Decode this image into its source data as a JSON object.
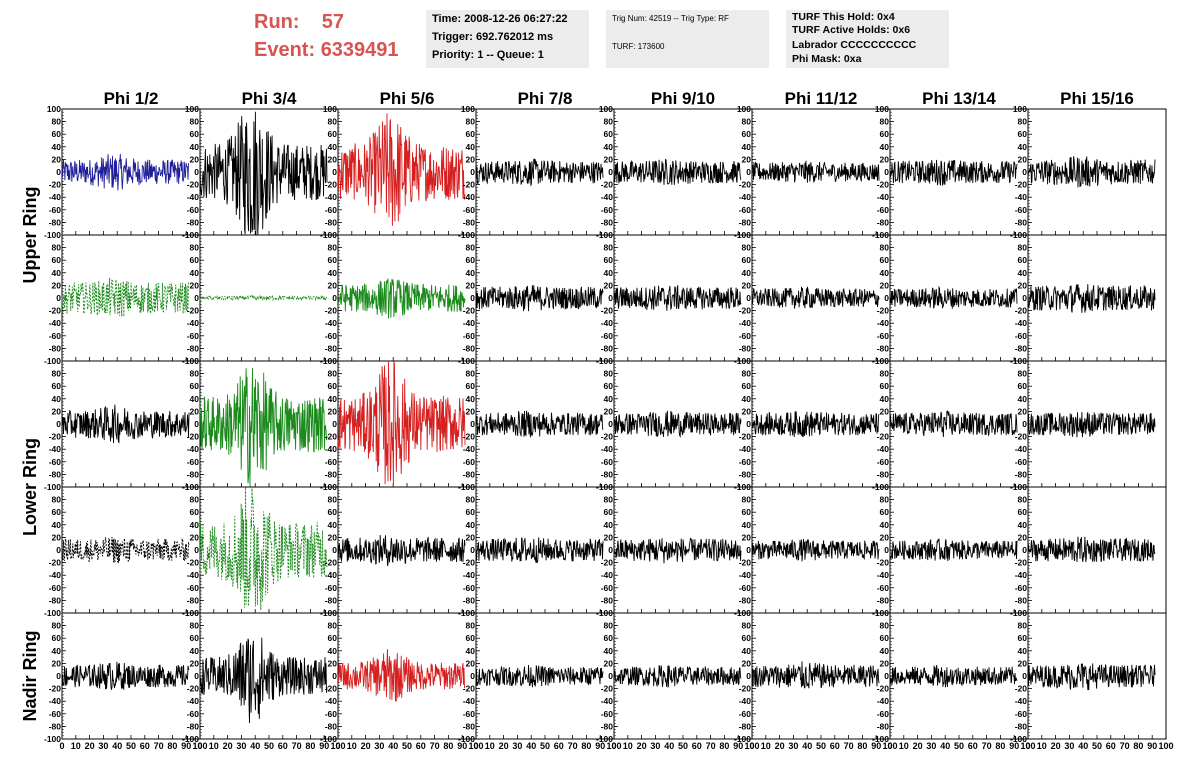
{
  "header": {
    "run_label": "Run:",
    "run_value": "57",
    "event_label": "Event:",
    "event_value": "6339491"
  },
  "info_boxes": {
    "time": [
      "Time: 2008-12-26 06:27:22",
      "Trigger: 692.762012 ms",
      "Priority: 1 -- Queue: 1"
    ],
    "trig": [
      "Trig Num: 42519 -- Trig Type: RF",
      "TURF: 173600"
    ],
    "turf": [
      "TURF This Hold: 0x4",
      "TURF Active Holds: 0x6",
      "Labrador CCCCCCCCCC",
      "Phi Mask: 0xa"
    ]
  },
  "colors": {
    "black": "#000000",
    "blue": "#1f1f9a",
    "red": "#d62020",
    "green": "#1a8a1a",
    "header_red": "#d9534f",
    "info_bg": "#ececec"
  },
  "chart_data": {
    "type": "line",
    "title": "",
    "columns": [
      "Phi 1/2",
      "Phi 3/4",
      "Phi 5/6",
      "Phi 7/8",
      "Phi 9/10",
      "Phi 11/12",
      "Phi 13/14",
      "Phi 15/16"
    ],
    "row_labels": [
      "Upper Ring",
      "Lower Ring",
      "Nadir Ring"
    ],
    "xlim": [
      0,
      100
    ],
    "ylim": [
      -100,
      100
    ],
    "x_ticks": [
      0,
      10,
      20,
      30,
      40,
      50,
      60,
      70,
      80,
      90,
      100
    ],
    "y_ticks": [
      -100,
      -80,
      -60,
      -40,
      -20,
      0,
      20,
      40,
      60,
      80,
      100
    ],
    "grid": false,
    "trace_style": [
      [
        "blue",
        "black",
        "red",
        "black",
        "black",
        "black",
        "black",
        "black"
      ],
      [
        "green-dashed",
        "green-dashed",
        "green",
        "black",
        "black",
        "black",
        "black",
        "black"
      ],
      [
        "black",
        "green",
        "red",
        "black",
        "black",
        "black",
        "black",
        "black"
      ],
      [
        "black-dashed",
        "green-dashed",
        "black",
        "black",
        "black",
        "black",
        "black",
        "black"
      ],
      [
        "black",
        "black",
        "red",
        "black",
        "black",
        "black",
        "black",
        "black"
      ]
    ],
    "trace_amplitude": [
      [
        20,
        45,
        45,
        18,
        18,
        15,
        18,
        20
      ],
      [
        25,
        3,
        22,
        18,
        18,
        15,
        15,
        20
      ],
      [
        22,
        45,
        45,
        18,
        18,
        18,
        18,
        18
      ],
      [
        18,
        45,
        20,
        18,
        18,
        15,
        15,
        18
      ],
      [
        18,
        30,
        22,
        15,
        15,
        18,
        15,
        18
      ]
    ],
    "trace_burst": [
      [
        0.5,
        1.6,
        1.2,
        0.2,
        0.2,
        0.2,
        0.2,
        0.3
      ],
      [
        0.3,
        0.2,
        0.5,
        0.2,
        0.2,
        0.2,
        0.2,
        0.2
      ],
      [
        0.4,
        1.3,
        1.4,
        0.2,
        0.2,
        0.2,
        0.2,
        0.2
      ],
      [
        0.2,
        1.5,
        0.3,
        0.2,
        0.2,
        0.2,
        0.2,
        0.2
      ],
      [
        0.3,
        1.6,
        1.0,
        0.2,
        0.2,
        0.3,
        0.2,
        0.3
      ]
    ]
  }
}
